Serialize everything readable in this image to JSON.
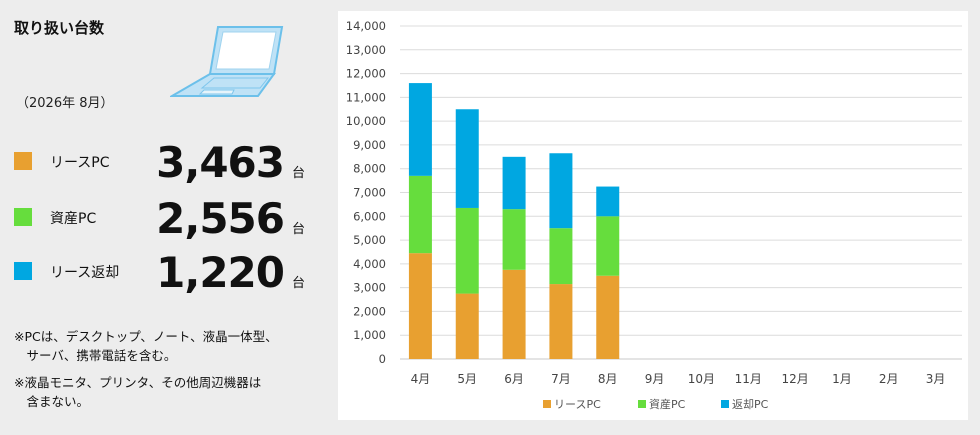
{
  "header": {
    "title": "取り扱い台数",
    "period": "（2026年 8月）"
  },
  "stats": [
    {
      "label": "リースPC",
      "value": "3,463",
      "unit": "台",
      "color": "#e8a030"
    },
    {
      "label": "資産PC",
      "value": "2,556",
      "unit": "台",
      "color": "#66dd3d"
    },
    {
      "label": "リース返却",
      "value": "1,220",
      "unit": "台",
      "color": "#00a7e1"
    }
  ],
  "notes": [
    "※PCは、デスクトップ、ノート、液晶一体型、",
    "　サーバ、携帯電話を含む。",
    "※液晶モニタ、プリンタ、その他周辺機器は",
    "　含まない。"
  ],
  "icons": {
    "laptop": "laptop-icon"
  },
  "chart_data": {
    "type": "bar",
    "stacked": true,
    "categories": [
      "4月",
      "5月",
      "6月",
      "7月",
      "8月",
      "9月",
      "10月",
      "11月",
      "12月",
      "1月",
      "2月",
      "3月"
    ],
    "series": [
      {
        "name": "リースPC",
        "color": "#e8a030",
        "values": [
          4450,
          2750,
          3750,
          3150,
          3500,
          null,
          null,
          null,
          null,
          null,
          null,
          null
        ]
      },
      {
        "name": "資産PC",
        "color": "#66dd3d",
        "values": [
          3250,
          3600,
          2550,
          2350,
          2500,
          null,
          null,
          null,
          null,
          null,
          null,
          null
        ]
      },
      {
        "name": "返却PC",
        "color": "#00a7e1",
        "values": [
          3900,
          4150,
          2200,
          3150,
          1250,
          null,
          null,
          null,
          null,
          null,
          null,
          null
        ]
      }
    ],
    "yticks": [
      "0",
      "1,000",
      "2,000",
      "3,000",
      "4,000",
      "5,000",
      "6,000",
      "7,000",
      "8,000",
      "9,000",
      "10,000",
      "11,000",
      "12,000",
      "13,000",
      "14,000"
    ],
    "ylim": [
      0,
      14000
    ],
    "grid": true,
    "legend": "bottom"
  }
}
